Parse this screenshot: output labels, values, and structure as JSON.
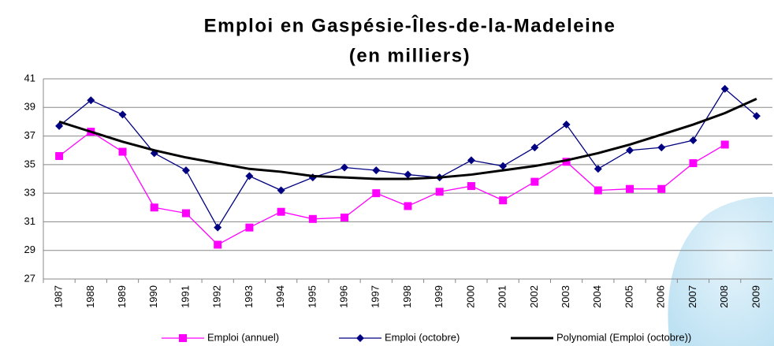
{
  "chart_data": {
    "type": "line",
    "title": [
      "Emploi en Gaspésie-Îles-de-la-Madeleine",
      "(en milliers)"
    ],
    "categories": [
      "1987",
      "1988",
      "1989",
      "1990",
      "1991",
      "1992",
      "1993",
      "1994",
      "1995",
      "1996",
      "1997",
      "1998",
      "1999",
      "2000",
      "2001",
      "2002",
      "2003",
      "2004",
      "2005",
      "2006",
      "2007",
      "2008",
      "2009"
    ],
    "series": [
      {
        "name": "Emploi (annuel)",
        "color": "#ff00ff",
        "marker": "square",
        "values": [
          35.6,
          37.3,
          35.9,
          32.0,
          31.6,
          29.4,
          30.6,
          31.7,
          31.2,
          31.3,
          33.0,
          32.1,
          33.1,
          33.5,
          32.5,
          33.8,
          35.2,
          33.2,
          33.3,
          33.3,
          35.1,
          36.4,
          null
        ]
      },
      {
        "name": "Emploi (octobre)",
        "color": "#000080",
        "marker": "diamond",
        "values": [
          37.7,
          39.5,
          38.5,
          35.8,
          34.6,
          30.6,
          34.2,
          33.2,
          34.1,
          34.8,
          34.6,
          34.3,
          34.1,
          35.3,
          34.9,
          36.2,
          37.8,
          34.7,
          36.0,
          36.2,
          36.7,
          40.3,
          38.4
        ]
      },
      {
        "name": "Polynomial (Emploi (octobre))",
        "color": "#000000",
        "marker": "none",
        "values": [
          38.0,
          37.3,
          36.6,
          36.0,
          35.5,
          35.1,
          34.7,
          34.5,
          34.2,
          34.1,
          34.0,
          34.0,
          34.1,
          34.3,
          34.6,
          34.9,
          35.3,
          35.8,
          36.4,
          37.1,
          37.8,
          38.6,
          39.6
        ]
      }
    ],
    "ylim": [
      27,
      41
    ],
    "yticks": [
      27,
      29,
      31,
      33,
      35,
      37,
      39,
      41
    ],
    "grid": true
  }
}
